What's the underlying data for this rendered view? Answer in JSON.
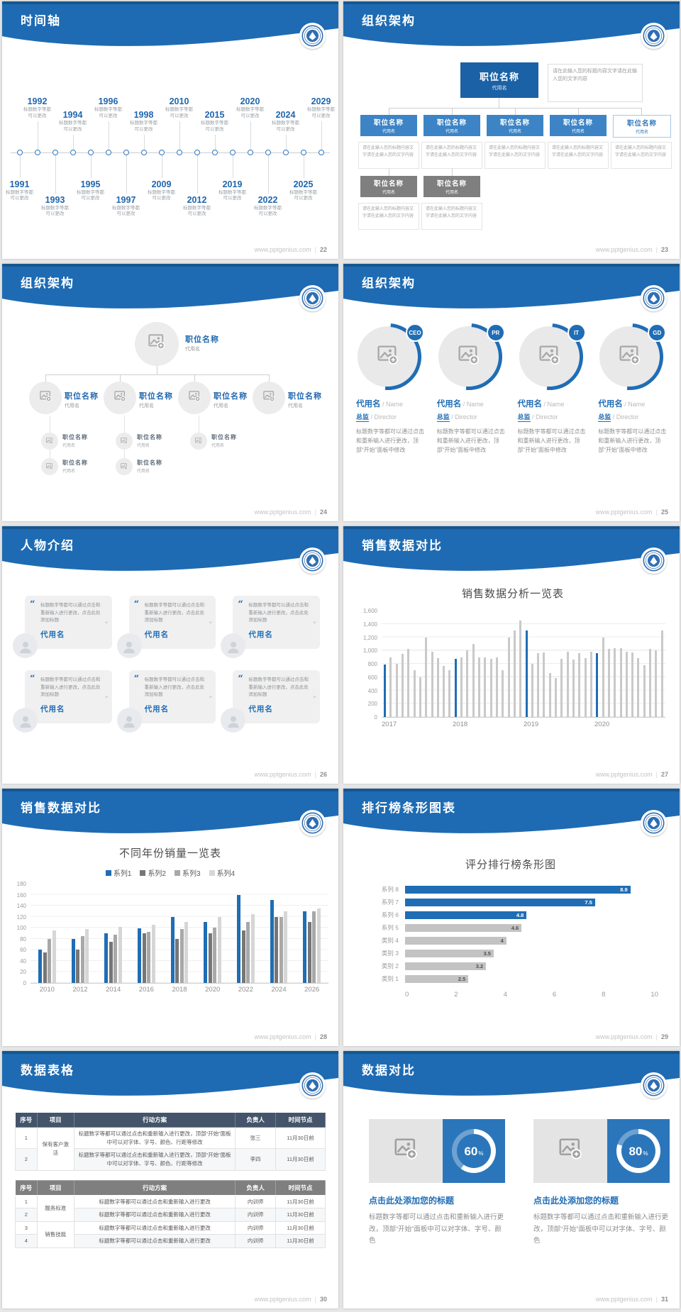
{
  "site": "www.pptgenius.com",
  "footer_sep": "|",
  "colors": {
    "accent": "#1f6db5",
    "header_blue": "#1e6bb3",
    "header_dark": "#17568f",
    "bar_gray": "#c9c9c9",
    "box_gray": "#7f7f7f",
    "table_navy": "#44546a",
    "table_gray": "#7f7f7f"
  },
  "slides": [
    {
      "page": "22",
      "title": "时间轴",
      "kind": "timeline"
    },
    {
      "page": "23",
      "title": "组织架构",
      "kind": "org-tree"
    },
    {
      "page": "24",
      "title": "组织架构",
      "kind": "org-photo-tree"
    },
    {
      "page": "25",
      "title": "组织架构",
      "kind": "team-photos"
    },
    {
      "page": "26",
      "title": "人物介绍",
      "kind": "people-quotes"
    },
    {
      "page": "27",
      "title": "销售数据对比",
      "kind": "chart-monthly"
    },
    {
      "page": "28",
      "title": "销售数据对比",
      "kind": "chart-series"
    },
    {
      "page": "29",
      "title": "排行榜条形图表",
      "kind": "chart-ranking"
    },
    {
      "page": "30",
      "title": "数据表格",
      "kind": "tables"
    },
    {
      "page": "31",
      "title": "数据对比",
      "kind": "donut-compare"
    }
  ],
  "timeline": {
    "caption": [
      "标题数字等都",
      "可以更改"
    ],
    "entries": [
      {
        "year": "1991",
        "pos": "bot-near"
      },
      {
        "year": "1992",
        "pos": "top-far"
      },
      {
        "year": "1993",
        "pos": "bot-far"
      },
      {
        "year": "1994",
        "pos": "top-near"
      },
      {
        "year": "1995",
        "pos": "bot-near"
      },
      {
        "year": "1996",
        "pos": "top-far"
      },
      {
        "year": "1997",
        "pos": "bot-far"
      },
      {
        "year": "1998",
        "pos": "top-near"
      },
      {
        "year": "2009",
        "pos": "bot-near"
      },
      {
        "year": "2010",
        "pos": "top-far"
      },
      {
        "year": "2012",
        "pos": "bot-far"
      },
      {
        "year": "2015",
        "pos": "top-near"
      },
      {
        "year": "2019",
        "pos": "bot-near"
      },
      {
        "year": "2020",
        "pos": "top-far"
      },
      {
        "year": "2022",
        "pos": "bot-far"
      },
      {
        "year": "2024",
        "pos": "top-near"
      },
      {
        "year": "2025",
        "pos": "bot-near"
      },
      {
        "year": "2029",
        "pos": "top-far"
      }
    ]
  },
  "org_tree": {
    "root_title": "职位名称",
    "root_subtitle": "代用名",
    "note": "请在此输入您的标题内容文字请在此输入您的文字内容",
    "desc": "请在此输入您的标题内容文字请在此输入您的文字内容",
    "children": [
      {
        "title": "职位名称",
        "subtitle": "代用名",
        "style": "blue"
      },
      {
        "title": "职位名称",
        "subtitle": "代用名",
        "style": "blue"
      },
      {
        "title": "职位名称",
        "subtitle": "代用名",
        "style": "blue"
      },
      {
        "title": "职位名称",
        "subtitle": "代用名",
        "style": "blue"
      },
      {
        "title": "职位名称",
        "subtitle": "代用名",
        "style": "outline"
      }
    ],
    "gray_children": [
      {
        "title": "职位名称",
        "subtitle": "代用名"
      },
      {
        "title": "职位名称",
        "subtitle": "代用名"
      }
    ]
  },
  "org_photo_tree": {
    "root": {
      "title": "职位名称",
      "subtitle": "代用名"
    },
    "children": [
      {
        "title": "职位名称",
        "subtitle": "代用名",
        "subs": [
          {
            "title": "职位名称",
            "subtitle": "代用名"
          },
          {
            "title": "职位名称",
            "subtitle": "代用名"
          }
        ]
      },
      {
        "title": "职位名称",
        "subtitle": "代用名",
        "subs": [
          {
            "title": "职位名称",
            "subtitle": "代用名"
          },
          {
            "title": "职位名称",
            "subtitle": "代用名"
          }
        ]
      },
      {
        "title": "职位名称",
        "subtitle": "代用名",
        "subs": [
          {
            "title": "职位名称",
            "subtitle": "代用名"
          }
        ]
      },
      {
        "title": "职位名称",
        "subtitle": "代用名",
        "subs": []
      }
    ]
  },
  "team_photos": {
    "badges": [
      "CEO",
      "PR",
      "IT",
      "GD"
    ],
    "name_cn": "代用名",
    "name_en": "Name",
    "role_cn": "总监",
    "role_en": "Director",
    "body": "标题数字等都可以通过点击和重新输入进行更改，顶部“开始”面板中修改"
  },
  "people_quotes": {
    "cards": [
      {
        "text": "标题数字等都可以通过点击和重新输入进行更改，点击此处添加标题",
        "name": "代用名"
      },
      {
        "text": "标题数字等都可以通过点击和重新输入进行更改，点击此处添加标题",
        "name": "代用名"
      },
      {
        "text": "标题数字等都可以通过点击和重新输入进行更改，点击此处添加标题",
        "name": "代用名"
      },
      {
        "text": "标题数字等都可以通过点击和重新输入进行更改，点击此处添加标题",
        "name": "代用名"
      },
      {
        "text": "标题数字等都可以通过点击和重新输入进行更改，点击此处添加标题",
        "name": "代用名"
      },
      {
        "text": "标题数字等都可以通过点击和重新输入进行更改，点击此处添加标题",
        "name": "代用名"
      }
    ]
  },
  "tables": {
    "headers": [
      "序号",
      "项目",
      "行动方案",
      "负责人",
      "时间节点"
    ],
    "table1": {
      "style": "navy",
      "rows": [
        {
          "no": "1",
          "project": "保有客户激活",
          "rowspan": 2,
          "plan": "标题数字等都可以通过点击和重新输入进行更改，顶部“开始”面板中可以对字体、字号、颜色、行距等修改",
          "owner": "张三",
          "time": "11月30日前"
        },
        {
          "no": "2",
          "plan": "标题数字等都可以通过点击和重新输入进行更改，顶部“开始”面板中可以对字体、字号、颜色、行距等修改",
          "owner": "李四",
          "time": "11月30日前"
        }
      ]
    },
    "table2": {
      "style": "gray",
      "rows": [
        {
          "no": "1",
          "project": "服务标准",
          "rowspan": 2,
          "plan": "标题数字等都可以通过点击和重新输入进行更改",
          "owner": "内训师",
          "time": "11月30日前"
        },
        {
          "no": "2",
          "plan": "标题数字等都可以通过点击和重新输入进行更改",
          "owner": "内训师",
          "time": "11月30日前"
        },
        {
          "no": "3",
          "project": "销售技能",
          "rowspan": 2,
          "plan": "标题数字等都可以通过点击和重新输入进行更改",
          "owner": "内训师",
          "time": "11月30日前"
        },
        {
          "no": "4",
          "plan": "标题数字等都可以通过点击和重新输入进行更改",
          "owner": "内训师",
          "time": "11月30日前"
        }
      ]
    }
  },
  "donut_compare": {
    "items": [
      {
        "percent": 60,
        "value": "60",
        "unit": "%",
        "title": "点击此处添加您的标题",
        "body": "标题数字等都可以通过点击和重新输入进行更改，顶部“开始”面板中可以对字体、字号、颜色"
      },
      {
        "percent": 80,
        "value": "80",
        "unit": "%",
        "title": "点击此处添加您的标题",
        "body": "标题数字等都可以通过点击和重新输入进行更改，顶部“开始”面板中可以对字体、字号、颜色"
      }
    ]
  },
  "chart_data": [
    {
      "slide_page": "27",
      "type": "bar",
      "title": "销售数据分析一览表",
      "x_groups": [
        "2017",
        "2018",
        "2019",
        "2020"
      ],
      "values": [
        790,
        900,
        800,
        950,
        1020,
        700,
        600,
        1200,
        980,
        890,
        770,
        700,
        880,
        900,
        1000,
        1100,
        900,
        900,
        880,
        900,
        700,
        1200,
        1300,
        1450,
        1300,
        800,
        960,
        970,
        660,
        590,
        870,
        980,
        860,
        960,
        890,
        980,
        960,
        1200,
        1020,
        1030,
        1030,
        980,
        970,
        890,
        780,
        1020,
        1000,
        1300
      ],
      "highlight_indices": [
        0,
        12,
        24,
        36
      ],
      "bar_color": "#c9c9c9",
      "highlight_color": "#1f6db5",
      "ylim": [
        0,
        1600
      ],
      "ytick_labels": [
        "0",
        "200",
        "400",
        "600",
        "800",
        "1,000",
        "1,200",
        "1,400",
        "1,600"
      ],
      "grid": true
    },
    {
      "slide_page": "28",
      "type": "bar",
      "title": "不同年份销量一览表",
      "categories": [
        "2010",
        "2012",
        "2014",
        "2016",
        "2018",
        "2020",
        "2022",
        "2024",
        "2026"
      ],
      "series": [
        {
          "name": "系列1",
          "color": "#1f6db5",
          "values": [
            60,
            80,
            90,
            99,
            120,
            110,
            160,
            150,
            130
          ]
        },
        {
          "name": "系列2",
          "color": "#767676",
          "values": [
            55,
            60,
            75,
            90,
            80,
            90,
            95,
            120,
            110
          ]
        },
        {
          "name": "系列3",
          "color": "#a8a8a8",
          "values": [
            80,
            85,
            88,
            92,
            98,
            100,
            110,
            120,
            130
          ]
        },
        {
          "name": "系列4",
          "color": "#d6d6d6",
          "values": [
            95,
            98,
            101,
            105,
            110,
            120,
            125,
            130,
            135
          ]
        }
      ],
      "ylim": [
        0,
        180
      ],
      "ytick_labels": [
        "0",
        "20",
        "40",
        "60",
        "80",
        "100",
        "120",
        "140",
        "160",
        "180"
      ],
      "legend_position": "top",
      "grid": true
    },
    {
      "slide_page": "29",
      "type": "bar-horizontal",
      "title": "评分排行榜条形图",
      "categories": [
        "系列 8",
        "系列 7",
        "系列 6",
        "系列 5",
        "类别 4",
        "类别 3",
        "类别 2",
        "类别 1"
      ],
      "values": [
        8.9,
        7.5,
        4.8,
        4.6,
        4,
        3.5,
        3.2,
        2.5
      ],
      "value_labels": [
        "8.9",
        "7.5",
        "4.8",
        "4.6",
        "4",
        "3.5",
        "3.2",
        "2.5"
      ],
      "colors": [
        "#1f6db5",
        "#1f6db5",
        "#1f6db5",
        "#c3c3c3",
        "#c3c3c3",
        "#c3c3c3",
        "#c3c3c3",
        "#c3c3c3"
      ],
      "xlim": [
        0,
        10
      ],
      "xtick_labels": [
        "0",
        "2",
        "4",
        "6",
        "8",
        "10"
      ],
      "grid": false
    },
    {
      "slide_page": "31",
      "type": "donut",
      "values": [
        60,
        80
      ],
      "labels": [
        "60%",
        "80%"
      ]
    }
  ]
}
